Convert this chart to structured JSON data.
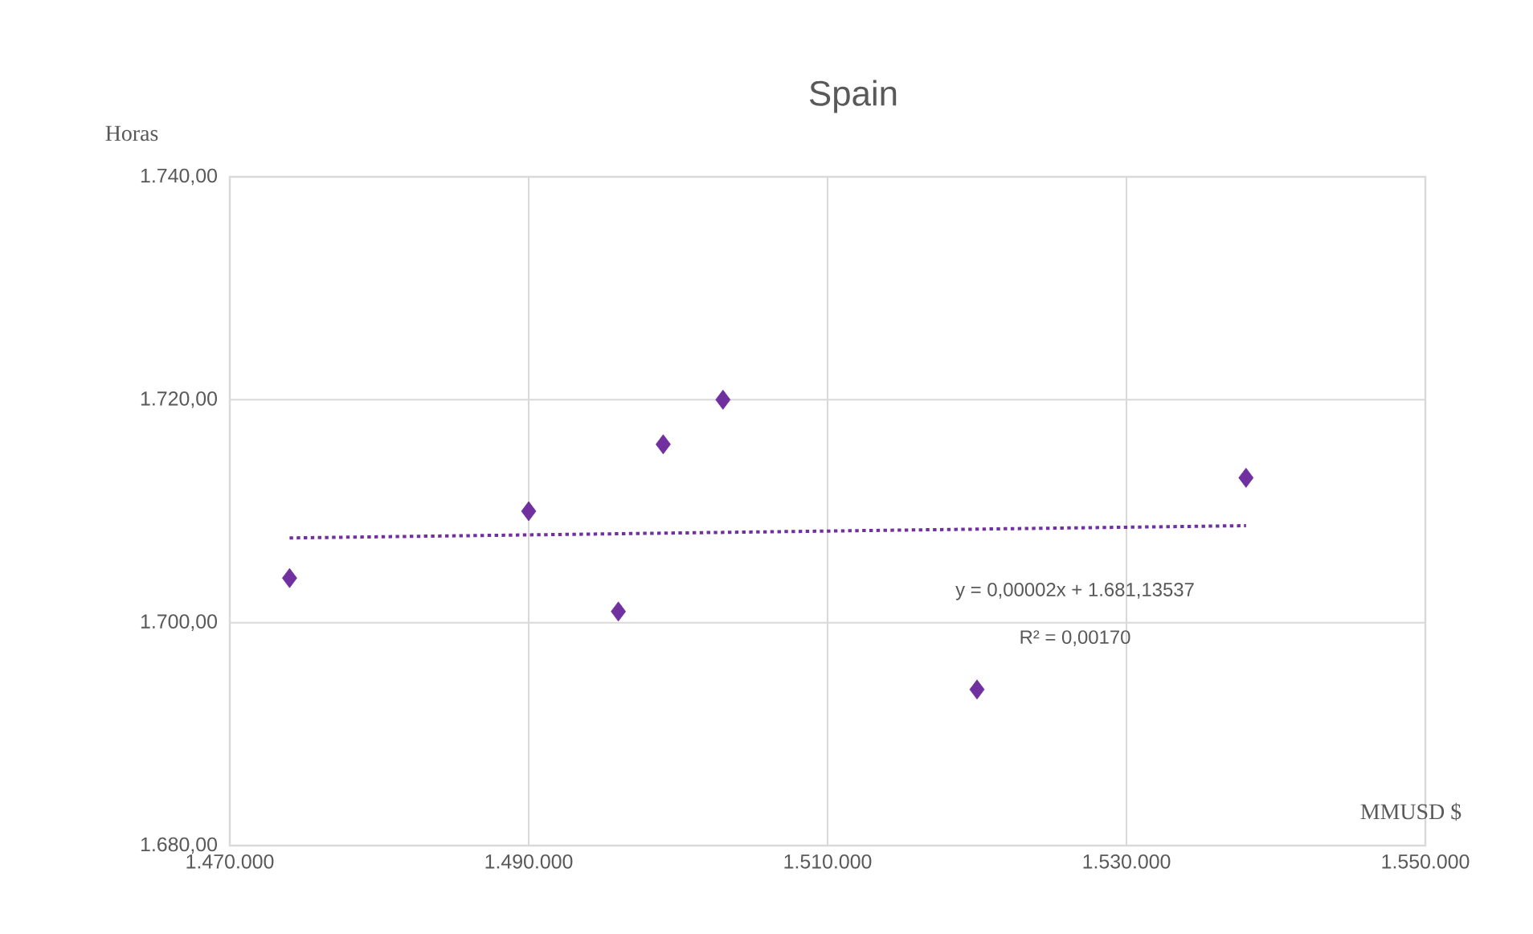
{
  "chart_data": {
    "type": "scatter",
    "title": "Spain",
    "xlabel": "MMUSD $",
    "ylabel": "Horas",
    "x": [
      1474000,
      1490000,
      1496000,
      1499000,
      1503000,
      1520000,
      1538000
    ],
    "xlim": [
      1470000,
      1550000
    ],
    "ylim": [
      1680,
      1740
    ],
    "xticks": [
      {
        "value": 1470000,
        "label": "1.470.000"
      },
      {
        "value": 1490000,
        "label": "1.490.000"
      },
      {
        "value": 1510000,
        "label": "1.510.000"
      },
      {
        "value": 1530000,
        "label": "1.530.000"
      },
      {
        "value": 1550000,
        "label": "1.550.000"
      }
    ],
    "yticks": [
      {
        "value": 1680,
        "label": "1.680,00"
      },
      {
        "value": 1700,
        "label": "1.700,00"
      },
      {
        "value": 1720,
        "label": "1.720,00"
      },
      {
        "value": 1740,
        "label": "1.740,00"
      }
    ],
    "grid": true,
    "annotations": [
      "y = 0,00002x + 1.681,13537",
      "R² = 0,00170"
    ],
    "series": [
      {
        "color": "#7030a0",
        "marker": "diamond",
        "values": [
          1704,
          1710,
          1701,
          1716,
          1720,
          1694,
          1713
        ]
      },
      {
        "type": "line",
        "x": [
          1474000,
          1538000
        ],
        "values": [
          1707.6,
          1708.7
        ],
        "color": "#7030a0",
        "line_style": "dotted",
        "marker": "none"
      }
    ]
  }
}
